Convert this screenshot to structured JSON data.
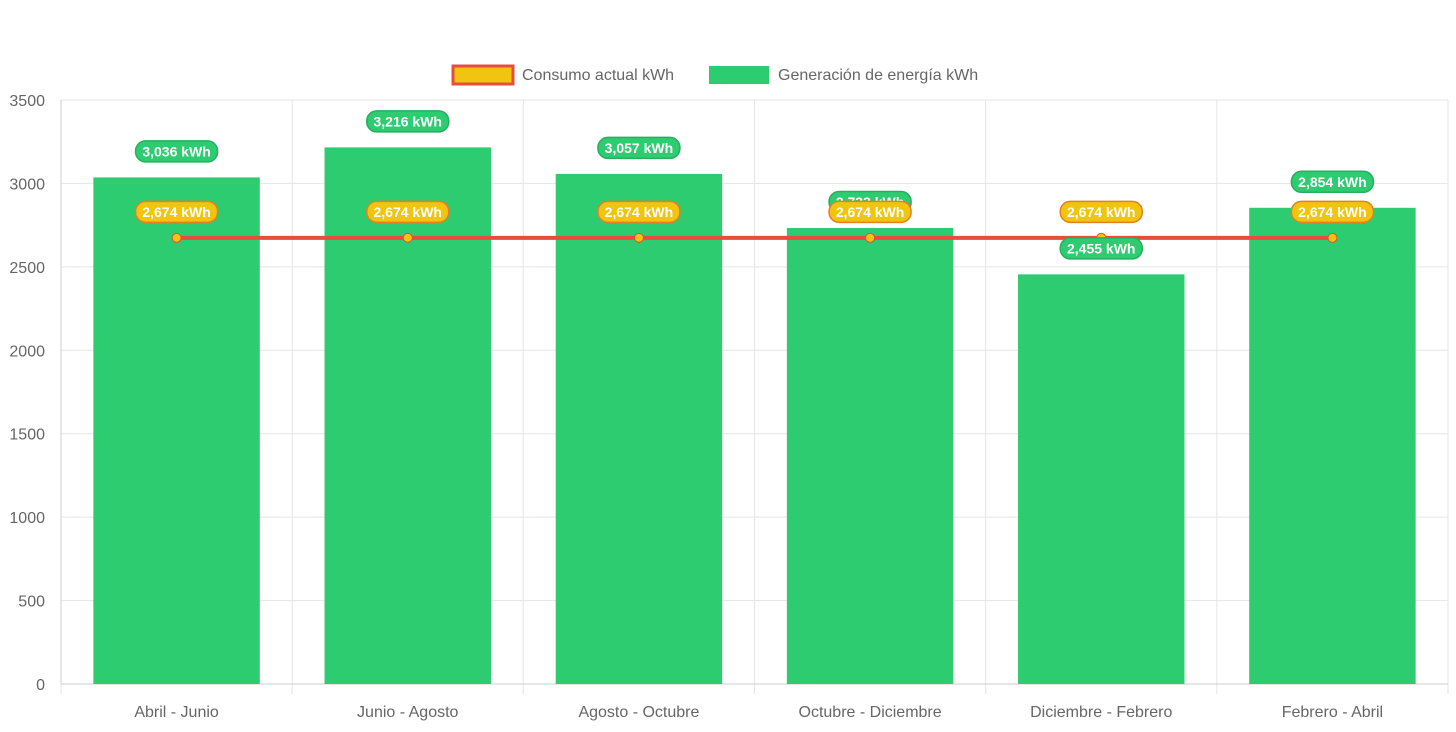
{
  "colors": {
    "bar_fill": "#2ecc71",
    "line_stroke": "#e74c3c",
    "point_fill": "#f1c40f",
    "grid": "#e5e5e5",
    "tick_text": "#666666",
    "label_text": "#ffffff"
  },
  "legend": {
    "placement": "top-center",
    "items": [
      {
        "label": "Consumo actual kWh",
        "swatch": "line"
      },
      {
        "label": "Generación de energía kWh",
        "swatch": "bar"
      }
    ]
  },
  "chart_data": {
    "type": "bar",
    "categories": [
      "Abril - Junio",
      "Junio - Agosto",
      "Agosto - Octubre",
      "Octubre - Diciembre",
      "Diciembre - Febrero",
      "Febrero - Abril"
    ],
    "series": [
      {
        "name": "Generación de energía kWh",
        "type": "bar",
        "values": [
          3036,
          3216,
          3057,
          2733,
          2455,
          2854
        ],
        "data_labels": [
          "3,036 kWh",
          "3,216 kWh",
          "3,057 kWh",
          "2,733 kWh",
          "2,455 kWh",
          "2,854 kWh"
        ]
      },
      {
        "name": "Consumo actual kWh",
        "type": "line",
        "values": [
          2674,
          2674,
          2674,
          2674,
          2674,
          2674
        ],
        "data_labels": [
          "2,674 kWh",
          "2,674 kWh",
          "2,674 kWh",
          "2,674 kWh",
          "2,674 kWh",
          "2,674 kWh"
        ]
      }
    ],
    "ylim": [
      0,
      3500
    ],
    "yticks": [
      "0",
      "500",
      "1000",
      "1500",
      "2000",
      "2500",
      "3000",
      "3500"
    ],
    "grid": true
  }
}
